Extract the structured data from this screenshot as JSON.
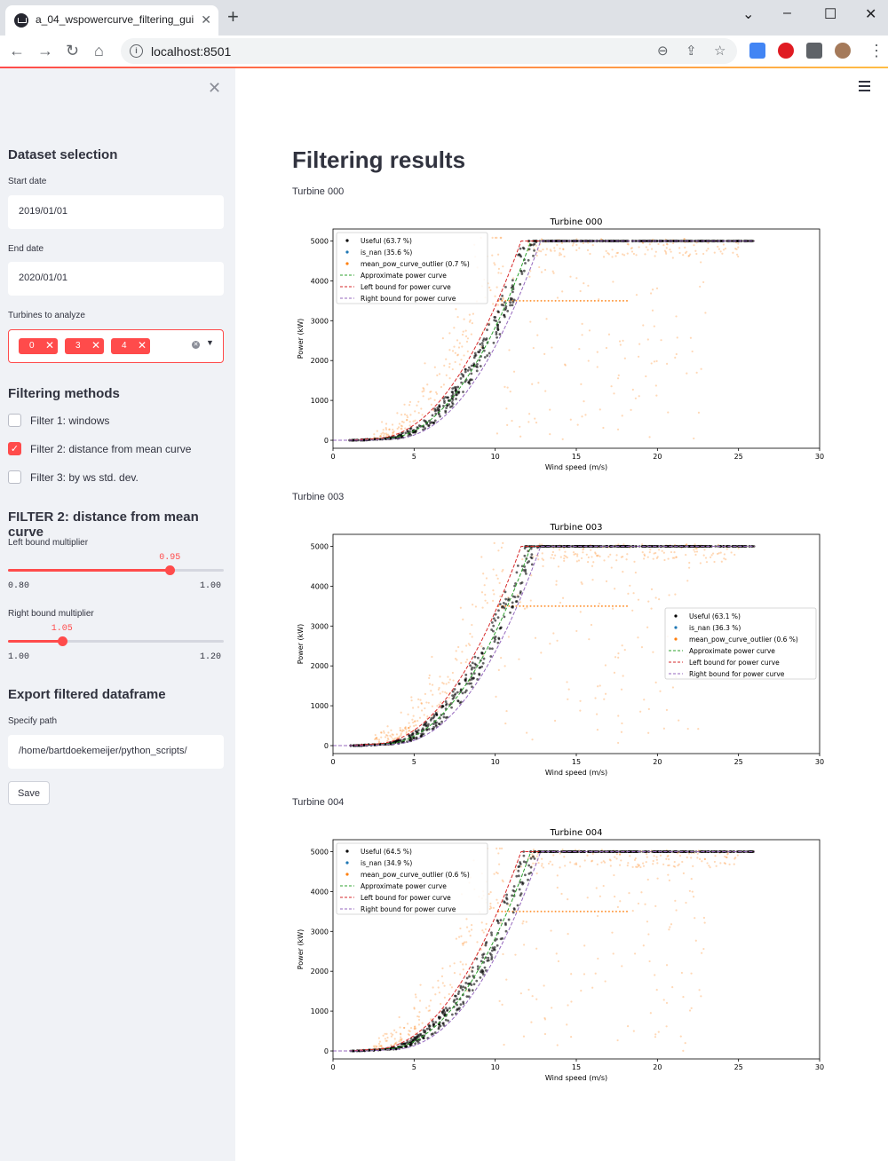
{
  "browser": {
    "tab_title": "a_04_wspowercurve_filtering_gui",
    "tab_close": "✕",
    "new_tab": "+",
    "url": "localhost:8501"
  },
  "sidebar": {
    "close": "✕",
    "dataset_heading": "Dataset selection",
    "start_label": "Start date",
    "start_value": "2019/01/01",
    "end_label": "End date",
    "end_value": "2020/01/01",
    "turbines_label": "Turbines to analyze",
    "turbines": [
      "0",
      "3",
      "4"
    ],
    "chip_remove": "✕",
    "methods_heading": "Filtering methods",
    "filters": [
      {
        "label": "Filter 1: windows",
        "checked": false
      },
      {
        "label": "Filter 2: distance from mean curve",
        "checked": true
      },
      {
        "label": "Filter 3: by ws std. dev.",
        "checked": false
      }
    ],
    "filter2_heading": "FILTER 2: distance from mean curve",
    "left_slider": {
      "label": "Left bound multiplier",
      "value": "0.95",
      "min": "0.80",
      "max": "1.00",
      "fraction": 0.75
    },
    "right_slider": {
      "label": "Right bound multiplier",
      "value": "1.05",
      "min": "1.00",
      "max": "1.20",
      "fraction": 0.25
    },
    "export_heading": "Export filtered dataframe",
    "path_label": "Specify path",
    "path_value": "/home/bartdoekemeijer/python_scripts/",
    "save_label": "Save"
  },
  "main": {
    "title": "Filtering results",
    "turbine_captions": [
      "Turbine 000",
      "Turbine 003",
      "Turbine 004"
    ]
  },
  "chart_data": [
    {
      "type": "scatter",
      "title": "Turbine 000",
      "xlabel": "Wind speed (m/s)",
      "ylabel": "Power (kW)",
      "xlim": [
        0,
        30
      ],
      "ylim": [
        -200,
        5300
      ],
      "xticks": [
        0,
        5,
        10,
        15,
        20,
        25,
        30
      ],
      "yticks": [
        0,
        1000,
        2000,
        3000,
        4000,
        5000
      ],
      "legend_position": "top-left",
      "legend": [
        "Useful (63.7 %)",
        "is_nan (35.6 %)",
        "mean_pow_curve_outlier (0.7 %)",
        "Approximate power curve",
        "Left bound for power curve",
        "Right bound for power curve"
      ]
    },
    {
      "type": "scatter",
      "title": "Turbine 003",
      "xlabel": "Wind speed (m/s)",
      "ylabel": "Power (kW)",
      "xlim": [
        0,
        30
      ],
      "ylim": [
        -200,
        5300
      ],
      "xticks": [
        0,
        5,
        10,
        15,
        20,
        25,
        30
      ],
      "yticks": [
        0,
        1000,
        2000,
        3000,
        4000,
        5000
      ],
      "legend_position": "center-right",
      "legend": [
        "Useful (63.1 %)",
        "is_nan (36.3 %)",
        "mean_pow_curve_outlier (0.6 %)",
        "Approximate power curve",
        "Left bound for power curve",
        "Right bound for power curve"
      ]
    },
    {
      "type": "scatter",
      "title": "Turbine 004",
      "xlabel": "Wind speed (m/s)",
      "ylabel": "Power (kW)",
      "xlim": [
        0,
        30
      ],
      "ylim": [
        -200,
        5300
      ],
      "xticks": [
        0,
        5,
        10,
        15,
        20,
        25,
        30
      ],
      "yticks": [
        0,
        1000,
        2000,
        3000,
        4000,
        5000
      ],
      "legend_position": "top-left",
      "legend": [
        "Useful (64.5 %)",
        "is_nan (34.9 %)",
        "mean_pow_curve_outlier (0.6 %)",
        "Approximate power curve",
        "Left bound for power curve",
        "Right bound for power curve"
      ]
    }
  ],
  "colors": {
    "accent": "#ff4b4b",
    "useful": "#000000",
    "is_nan": "#1f77b4",
    "outlier": "#ff7f0e",
    "approx": "#2ca02c",
    "left_bound": "#d62728",
    "right_bound": "#9467bd"
  }
}
